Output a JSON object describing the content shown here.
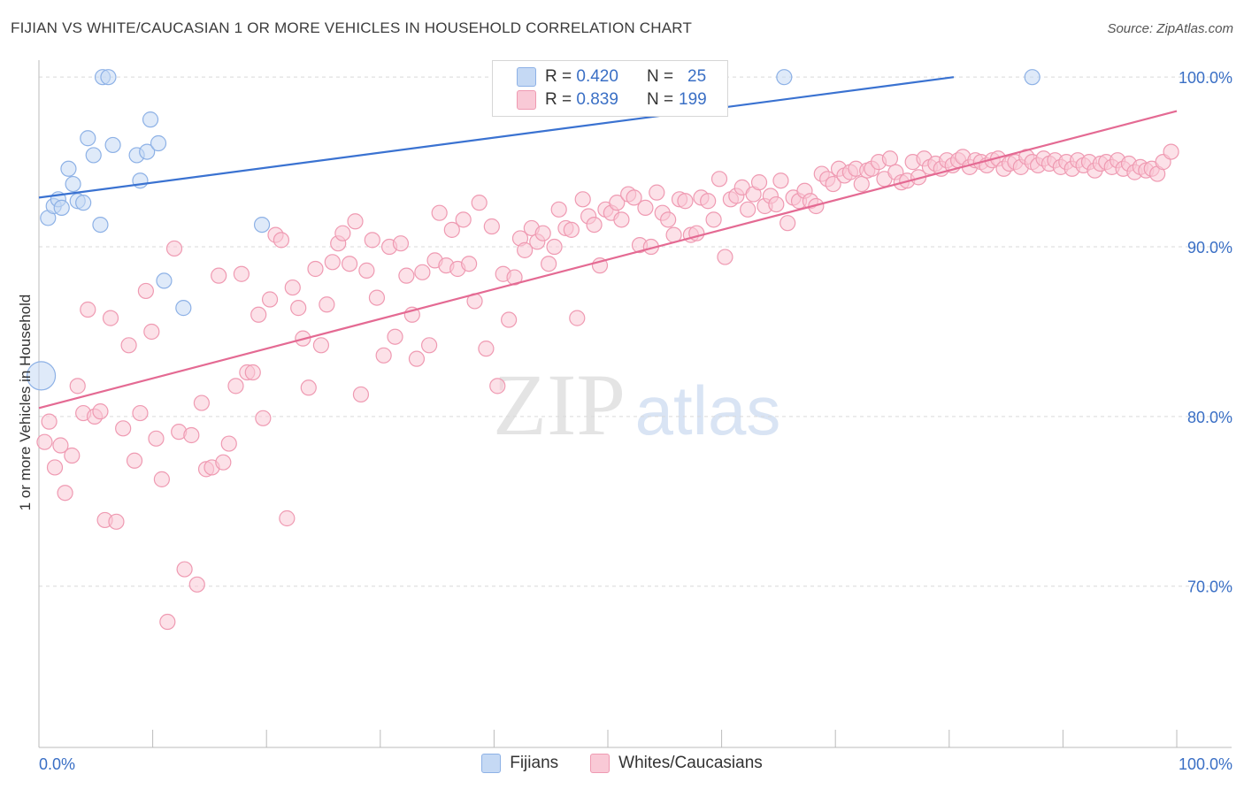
{
  "title": "FIJIAN VS WHITE/CAUCASIAN 1 OR MORE VEHICLES IN HOUSEHOLD CORRELATION CHART",
  "source": "Source: ZipAtlas.com",
  "watermark": {
    "zip": "ZIP",
    "atlas": "atlas"
  },
  "stats": [
    {
      "r_label": "R =",
      "r": "0.420",
      "n_label": "N =",
      "n": "25",
      "fill": "#c5d9f4",
      "stroke": "#8db1e6"
    },
    {
      "r_label": "R =",
      "r": "0.839",
      "n_label": "N =",
      "n": "199",
      "fill": "#f9c9d6",
      "stroke": "#ef9ab2"
    }
  ],
  "legend": [
    {
      "label": "Fijians",
      "fill": "#c5d9f4",
      "stroke": "#8db1e6"
    },
    {
      "label": "Whites/Caucasians",
      "fill": "#f9c9d6",
      "stroke": "#ef9ab2"
    }
  ],
  "chart_data": {
    "type": "scatter",
    "title": "FIJIAN VS WHITE/CAUCASIAN 1 OR MORE VEHICLES IN HOUSEHOLD CORRELATION CHART",
    "xlabel": "",
    "ylabel": "1 or more Vehicles in Household",
    "xlim": [
      0,
      100
    ],
    "ylim": [
      60.5,
      101
    ],
    "x_tick_labels": [
      "0.0%",
      "100.0%"
    ],
    "y_ticks": [
      70,
      80,
      90,
      100
    ],
    "y_tick_labels": [
      "70.0%",
      "80.0%",
      "90.0%",
      "100.0%"
    ],
    "grid": true,
    "series": [
      {
        "name": "Fijians",
        "color": "#3a72d1",
        "fill": "#c5d9f4",
        "stroke": "#8db1e6",
        "trend": {
          "x": [
            0,
            80.4
          ],
          "y": [
            92.9,
            100
          ]
        },
        "points": [
          {
            "x": 0.2,
            "y": 82.4,
            "big": true
          },
          {
            "x": 0.8,
            "y": 91.7
          },
          {
            "x": 1.3,
            "y": 92.4
          },
          {
            "x": 1.7,
            "y": 92.8
          },
          {
            "x": 2.0,
            "y": 92.3
          },
          {
            "x": 2.6,
            "y": 94.6
          },
          {
            "x": 3.0,
            "y": 93.7
          },
          {
            "x": 3.4,
            "y": 92.7
          },
          {
            "x": 3.9,
            "y": 92.6
          },
          {
            "x": 4.3,
            "y": 96.4
          },
          {
            "x": 4.8,
            "y": 95.4
          },
          {
            "x": 5.4,
            "y": 91.3
          },
          {
            "x": 5.6,
            "y": 100
          },
          {
            "x": 6.1,
            "y": 100
          },
          {
            "x": 6.5,
            "y": 96.0
          },
          {
            "x": 8.6,
            "y": 95.4
          },
          {
            "x": 8.9,
            "y": 93.9
          },
          {
            "x": 9.5,
            "y": 95.6
          },
          {
            "x": 9.8,
            "y": 97.5
          },
          {
            "x": 10.5,
            "y": 96.1
          },
          {
            "x": 11.0,
            "y": 88.0
          },
          {
            "x": 12.7,
            "y": 86.4
          },
          {
            "x": 19.6,
            "y": 91.3
          },
          {
            "x": 65.5,
            "y": 100
          },
          {
            "x": 87.3,
            "y": 100
          }
        ]
      },
      {
        "name": "Whites/Caucasians",
        "color": "#e46a93",
        "fill": "#f9c9d6",
        "stroke": "#ef9ab2",
        "trend": {
          "x": [
            0,
            100
          ],
          "y": [
            80.5,
            98.0
          ]
        },
        "points": [
          {
            "x": 0.5,
            "y": 78.5
          },
          {
            "x": 0.9,
            "y": 79.7
          },
          {
            "x": 1.4,
            "y": 77.0
          },
          {
            "x": 1.9,
            "y": 78.3
          },
          {
            "x": 2.3,
            "y": 75.5
          },
          {
            "x": 2.9,
            "y": 77.7
          },
          {
            "x": 3.4,
            "y": 81.8
          },
          {
            "x": 3.9,
            "y": 80.2
          },
          {
            "x": 4.3,
            "y": 86.3
          },
          {
            "x": 4.9,
            "y": 80.0
          },
          {
            "x": 5.4,
            "y": 80.3
          },
          {
            "x": 5.8,
            "y": 73.9
          },
          {
            "x": 6.3,
            "y": 85.8
          },
          {
            "x": 6.8,
            "y": 73.8
          },
          {
            "x": 7.4,
            "y": 79.3
          },
          {
            "x": 7.9,
            "y": 84.2
          },
          {
            "x": 8.4,
            "y": 77.4
          },
          {
            "x": 8.9,
            "y": 80.2
          },
          {
            "x": 9.4,
            "y": 87.4
          },
          {
            "x": 9.9,
            "y": 85.0
          },
          {
            "x": 10.3,
            "y": 78.7
          },
          {
            "x": 10.8,
            "y": 76.3
          },
          {
            "x": 11.3,
            "y": 67.9
          },
          {
            "x": 11.9,
            "y": 89.9
          },
          {
            "x": 12.3,
            "y": 79.1
          },
          {
            "x": 12.8,
            "y": 71.0
          },
          {
            "x": 13.4,
            "y": 78.9
          },
          {
            "x": 13.9,
            "y": 70.1
          },
          {
            "x": 14.3,
            "y": 80.8
          },
          {
            "x": 14.7,
            "y": 76.9
          },
          {
            "x": 15.2,
            "y": 77.0
          },
          {
            "x": 15.8,
            "y": 88.3
          },
          {
            "x": 16.2,
            "y": 77.3
          },
          {
            "x": 16.7,
            "y": 78.4
          },
          {
            "x": 17.3,
            "y": 81.8
          },
          {
            "x": 17.8,
            "y": 88.4
          },
          {
            "x": 18.3,
            "y": 82.6
          },
          {
            "x": 18.8,
            "y": 82.6
          },
          {
            "x": 19.3,
            "y": 86.0
          },
          {
            "x": 19.7,
            "y": 79.9
          },
          {
            "x": 20.3,
            "y": 86.9
          },
          {
            "x": 20.8,
            "y": 90.7
          },
          {
            "x": 21.3,
            "y": 90.4
          },
          {
            "x": 21.8,
            "y": 74.0
          },
          {
            "x": 22.3,
            "y": 87.6
          },
          {
            "x": 22.8,
            "y": 86.4
          },
          {
            "x": 23.2,
            "y": 84.6
          },
          {
            "x": 23.7,
            "y": 81.7
          },
          {
            "x": 24.3,
            "y": 88.7
          },
          {
            "x": 24.8,
            "y": 84.2
          },
          {
            "x": 25.3,
            "y": 86.6
          },
          {
            "x": 25.8,
            "y": 89.1
          },
          {
            "x": 26.3,
            "y": 90.2
          },
          {
            "x": 26.7,
            "y": 90.8
          },
          {
            "x": 27.3,
            "y": 89.0
          },
          {
            "x": 27.8,
            "y": 91.5
          },
          {
            "x": 28.3,
            "y": 81.3
          },
          {
            "x": 28.8,
            "y": 88.6
          },
          {
            "x": 29.3,
            "y": 90.4
          },
          {
            "x": 29.7,
            "y": 87.0
          },
          {
            "x": 30.3,
            "y": 83.6
          },
          {
            "x": 30.8,
            "y": 90.0
          },
          {
            "x": 31.3,
            "y": 84.7
          },
          {
            "x": 31.8,
            "y": 90.2
          },
          {
            "x": 32.3,
            "y": 88.3
          },
          {
            "x": 32.8,
            "y": 86.0
          },
          {
            "x": 33.2,
            "y": 83.4
          },
          {
            "x": 33.7,
            "y": 88.5
          },
          {
            "x": 34.3,
            "y": 84.2
          },
          {
            "x": 34.8,
            "y": 89.2
          },
          {
            "x": 35.2,
            "y": 92.0
          },
          {
            "x": 35.8,
            "y": 88.9
          },
          {
            "x": 36.3,
            "y": 91.0
          },
          {
            "x": 36.8,
            "y": 88.7
          },
          {
            "x": 37.3,
            "y": 91.6
          },
          {
            "x": 37.8,
            "y": 89.0
          },
          {
            "x": 38.3,
            "y": 86.8
          },
          {
            "x": 38.7,
            "y": 92.6
          },
          {
            "x": 39.3,
            "y": 84.0
          },
          {
            "x": 39.8,
            "y": 91.2
          },
          {
            "x": 40.3,
            "y": 81.8
          },
          {
            "x": 40.8,
            "y": 88.4
          },
          {
            "x": 41.3,
            "y": 85.7
          },
          {
            "x": 41.8,
            "y": 88.2
          },
          {
            "x": 42.3,
            "y": 90.5
          },
          {
            "x": 42.7,
            "y": 89.8
          },
          {
            "x": 43.3,
            "y": 91.1
          },
          {
            "x": 43.8,
            "y": 90.3
          },
          {
            "x": 44.3,
            "y": 90.8
          },
          {
            "x": 44.8,
            "y": 89.0
          },
          {
            "x": 45.3,
            "y": 90.0
          },
          {
            "x": 45.7,
            "y": 92.2
          },
          {
            "x": 46.3,
            "y": 91.1
          },
          {
            "x": 46.8,
            "y": 91.0
          },
          {
            "x": 47.3,
            "y": 85.8
          },
          {
            "x": 47.8,
            "y": 92.8
          },
          {
            "x": 48.3,
            "y": 91.8
          },
          {
            "x": 48.8,
            "y": 91.3
          },
          {
            "x": 49.3,
            "y": 88.9
          },
          {
            "x": 49.8,
            "y": 92.2
          },
          {
            "x": 50.3,
            "y": 92.0
          },
          {
            "x": 50.8,
            "y": 92.6
          },
          {
            "x": 51.2,
            "y": 91.6
          },
          {
            "x": 51.8,
            "y": 93.1
          },
          {
            "x": 52.3,
            "y": 92.9
          },
          {
            "x": 52.8,
            "y": 90.1
          },
          {
            "x": 53.3,
            "y": 92.3
          },
          {
            "x": 53.8,
            "y": 90.0
          },
          {
            "x": 54.3,
            "y": 93.2
          },
          {
            "x": 54.8,
            "y": 92.0
          },
          {
            "x": 55.3,
            "y": 91.6
          },
          {
            "x": 55.8,
            "y": 90.7
          },
          {
            "x": 56.3,
            "y": 92.8
          },
          {
            "x": 56.8,
            "y": 92.7
          },
          {
            "x": 57.3,
            "y": 90.7
          },
          {
            "x": 57.8,
            "y": 90.8
          },
          {
            "x": 58.2,
            "y": 92.9
          },
          {
            "x": 58.8,
            "y": 92.7
          },
          {
            "x": 59.3,
            "y": 91.6
          },
          {
            "x": 59.8,
            "y": 94.0
          },
          {
            "x": 60.3,
            "y": 89.4
          },
          {
            "x": 60.8,
            "y": 92.8
          },
          {
            "x": 61.3,
            "y": 93.0
          },
          {
            "x": 61.8,
            "y": 93.5
          },
          {
            "x": 62.3,
            "y": 92.2
          },
          {
            "x": 62.8,
            "y": 93.1
          },
          {
            "x": 63.3,
            "y": 93.8
          },
          {
            "x": 63.8,
            "y": 92.4
          },
          {
            "x": 64.3,
            "y": 93.0
          },
          {
            "x": 64.8,
            "y": 92.5
          },
          {
            "x": 65.2,
            "y": 93.9
          },
          {
            "x": 65.8,
            "y": 91.4
          },
          {
            "x": 66.3,
            "y": 92.9
          },
          {
            "x": 66.8,
            "y": 92.7
          },
          {
            "x": 67.3,
            "y": 93.3
          },
          {
            "x": 67.8,
            "y": 92.7
          },
          {
            "x": 68.3,
            "y": 92.4
          },
          {
            "x": 68.8,
            "y": 94.3
          },
          {
            "x": 69.3,
            "y": 94.0
          },
          {
            "x": 69.8,
            "y": 93.7
          },
          {
            "x": 70.3,
            "y": 94.6
          },
          {
            "x": 70.8,
            "y": 94.2
          },
          {
            "x": 71.3,
            "y": 94.4
          },
          {
            "x": 71.8,
            "y": 94.6
          },
          {
            "x": 72.3,
            "y": 93.7
          },
          {
            "x": 72.8,
            "y": 94.5
          },
          {
            "x": 73.2,
            "y": 94.6
          },
          {
            "x": 73.8,
            "y": 95.0
          },
          {
            "x": 74.3,
            "y": 94.0
          },
          {
            "x": 74.8,
            "y": 95.2
          },
          {
            "x": 75.3,
            "y": 94.4
          },
          {
            "x": 75.8,
            "y": 93.8
          },
          {
            "x": 76.3,
            "y": 93.9
          },
          {
            "x": 76.8,
            "y": 95.0
          },
          {
            "x": 77.3,
            "y": 94.1
          },
          {
            "x": 77.8,
            "y": 95.2
          },
          {
            "x": 78.3,
            "y": 94.7
          },
          {
            "x": 78.8,
            "y": 94.9
          },
          {
            "x": 79.3,
            "y": 94.6
          },
          {
            "x": 79.8,
            "y": 95.1
          },
          {
            "x": 80.3,
            "y": 94.8
          },
          {
            "x": 80.8,
            "y": 95.1
          },
          {
            "x": 81.2,
            "y": 95.3
          },
          {
            "x": 81.8,
            "y": 94.7
          },
          {
            "x": 82.3,
            "y": 95.1
          },
          {
            "x": 82.8,
            "y": 95.0
          },
          {
            "x": 83.3,
            "y": 94.8
          },
          {
            "x": 83.8,
            "y": 95.1
          },
          {
            "x": 84.3,
            "y": 95.2
          },
          {
            "x": 84.8,
            "y": 94.6
          },
          {
            "x": 85.3,
            "y": 94.9
          },
          {
            "x": 85.8,
            "y": 95.0
          },
          {
            "x": 86.3,
            "y": 94.7
          },
          {
            "x": 86.8,
            "y": 95.3
          },
          {
            "x": 87.3,
            "y": 95.0
          },
          {
            "x": 87.8,
            "y": 94.8
          },
          {
            "x": 88.3,
            "y": 95.2
          },
          {
            "x": 88.8,
            "y": 94.9
          },
          {
            "x": 89.3,
            "y": 95.1
          },
          {
            "x": 89.8,
            "y": 94.7
          },
          {
            "x": 90.3,
            "y": 95.0
          },
          {
            "x": 90.8,
            "y": 94.6
          },
          {
            "x": 91.3,
            "y": 95.1
          },
          {
            "x": 91.8,
            "y": 94.8
          },
          {
            "x": 92.3,
            "y": 95.0
          },
          {
            "x": 92.8,
            "y": 94.5
          },
          {
            "x": 93.3,
            "y": 94.9
          },
          {
            "x": 93.8,
            "y": 95.0
          },
          {
            "x": 94.3,
            "y": 94.7
          },
          {
            "x": 94.8,
            "y": 95.1
          },
          {
            "x": 95.3,
            "y": 94.6
          },
          {
            "x": 95.8,
            "y": 94.9
          },
          {
            "x": 96.3,
            "y": 94.4
          },
          {
            "x": 96.8,
            "y": 94.7
          },
          {
            "x": 97.3,
            "y": 94.5
          },
          {
            "x": 97.8,
            "y": 94.6
          },
          {
            "x": 98.3,
            "y": 94.3
          },
          {
            "x": 98.8,
            "y": 95.0
          },
          {
            "x": 99.5,
            "y": 95.6
          }
        ]
      }
    ]
  }
}
